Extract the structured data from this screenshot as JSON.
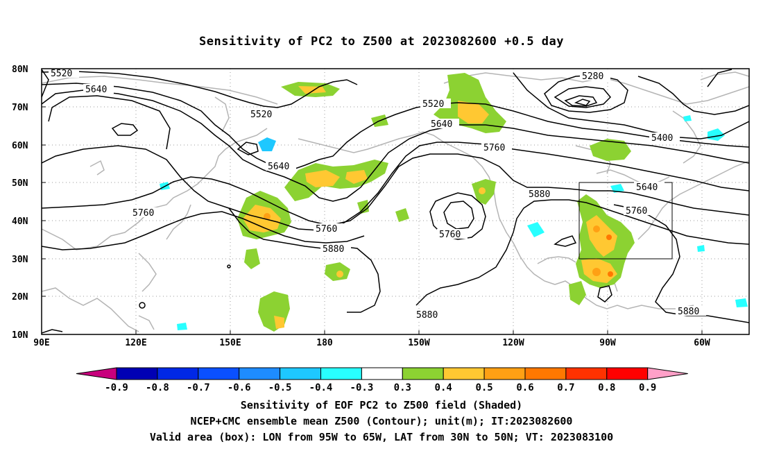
{
  "title": "Sensitivity of PC2 to Z500 at 2023082600 +0.5 day",
  "lat_labels": [
    "80N",
    "70N",
    "60N",
    "50N",
    "40N",
    "30N",
    "20N",
    "10N"
  ],
  "lon_labels": [
    "90E",
    "120E",
    "150E",
    "180",
    "150W",
    "120W",
    "90W",
    "60W"
  ],
  "contour_labels": {
    "c5520a": "5520",
    "c5640a": "5640",
    "c5520b": "5520",
    "c5640b": "5640",
    "c5760a": "5760",
    "c5760b": "5760",
    "c5880a": "5880",
    "c5520c": "5520",
    "c5640c": "5640",
    "c5760c": "5760",
    "c5280": "5280",
    "c5400": "5400",
    "c5760d": "5760",
    "c5880b": "5880",
    "c5640d": "5640",
    "c5760e": "5760",
    "c5880c": "5880",
    "c5880d": "5880"
  },
  "colorbar": {
    "labels": [
      "-0.9",
      "-0.8",
      "-0.7",
      "-0.6",
      "-0.5",
      "-0.4",
      "-0.3",
      "0.3",
      "0.4",
      "0.5",
      "0.6",
      "0.7",
      "0.8",
      "0.9"
    ],
    "colors": [
      "#c8007d",
      "#0000b4",
      "#0028e6",
      "#0a50ff",
      "#1e8cff",
      "#1ec8ff",
      "#28ffff",
      "#ffffff",
      "#8cd232",
      "#ffc832",
      "#ffa014",
      "#ff7800",
      "#ff3200",
      "#ff0000",
      "#ffa0c8"
    ]
  },
  "caption": {
    "line1": "Sensitivity of EOF PC2 to Z500 field (Shaded)",
    "line2": "NCEP+CMC ensemble mean Z500 (Contour); unit(m); IT:2023082600",
    "line3": "Valid area (box): LON from 95W to 65W, LAT from 30N to 50N; VT: 2023083100"
  }
}
